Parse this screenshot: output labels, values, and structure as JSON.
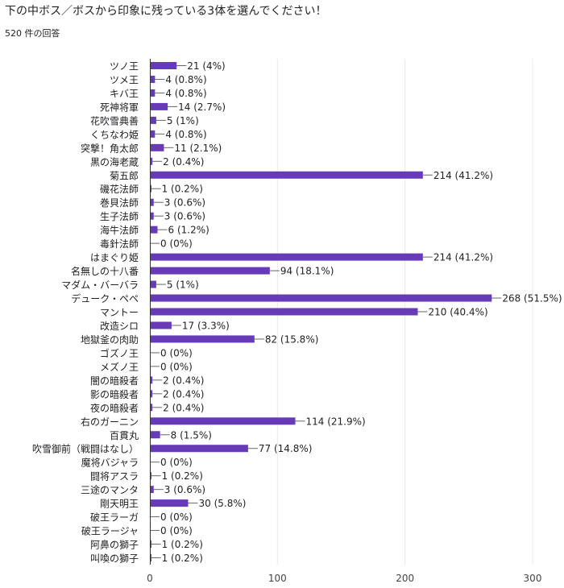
{
  "header": {
    "question_title": "下の中ボス／ボスから印象に残っている3体を選んでください！",
    "response_count": "520 件の回答"
  },
  "colors": {
    "bar": "#673ab7",
    "grid": "#e8e8e8",
    "axis": "#333333",
    "label": "#202124"
  },
  "chart_data": {
    "type": "bar",
    "orientation": "horizontal",
    "title": "",
    "xlabel": "",
    "ylabel": "",
    "xlim": [
      0,
      300
    ],
    "x_ticks": [
      0,
      100,
      200,
      300
    ],
    "grid": true,
    "legend": "none",
    "total_responses": 520,
    "categories": [
      "ツノ王",
      "ツメ王",
      "キバ王",
      "死神将軍",
      "花吹雪典善",
      "くちなわ姫",
      "突撃！角太郎",
      "黒の海老蔵",
      "菊五郎",
      "磯花法師",
      "巻貝法師",
      "生子法師",
      "海牛法師",
      "毒針法師",
      "はまぐり姫",
      "名無しの十八番",
      "マダム・バーバラ",
      "デューク・ペペ",
      "マントー",
      "改造シロ",
      "地獄釜の肉助",
      "ゴズノ王",
      "メズノ王",
      "闇の暗殺者",
      "影の暗殺者",
      "夜の暗殺者",
      "右のガーニン",
      "百貫丸",
      "吹雪御前（戦闘はなし）",
      "魔将バジャラ",
      "闘将アスラ",
      "三途のマンタ",
      "剛天明王",
      "破王ラーガ",
      "破王ラージャ",
      "阿鼻の獅子",
      "叫喚の獅子"
    ],
    "values": [
      21,
      4,
      4,
      14,
      5,
      4,
      11,
      2,
      214,
      1,
      3,
      3,
      6,
      0,
      214,
      94,
      5,
      268,
      210,
      17,
      82,
      0,
      0,
      2,
      2,
      2,
      114,
      8,
      77,
      0,
      1,
      3,
      30,
      0,
      0,
      1,
      1
    ],
    "data_labels": [
      "21 (4%)",
      "4 (0.8%)",
      "4 (0.8%)",
      "14 (2.7%)",
      "5 (1%)",
      "4 (0.8%)",
      "11 (2.1%)",
      "2 (0.4%)",
      "214 (41.2%)",
      "1 (0.2%)",
      "3 (0.6%)",
      "3 (0.6%)",
      "6 (1.2%)",
      "0 (0%)",
      "214 (41.2%)",
      "94 (18.1%)",
      "5 (1%)",
      "268 (51.5%)",
      "210 (40.4%)",
      "17 (3.3%)",
      "82 (15.8%)",
      "0 (0%)",
      "0 (0%)",
      "2 (0.4%)",
      "2 (0.4%)",
      "2 (0.4%)",
      "114 (21.9%)",
      "8 (1.5%)",
      "77 (14.8%)",
      "0 (0%)",
      "1 (0.2%)",
      "3 (0.6%)",
      "30 (5.8%)",
      "0 (0%)",
      "0 (0%)",
      "1 (0.2%)",
      "1 (0.2%)"
    ]
  }
}
